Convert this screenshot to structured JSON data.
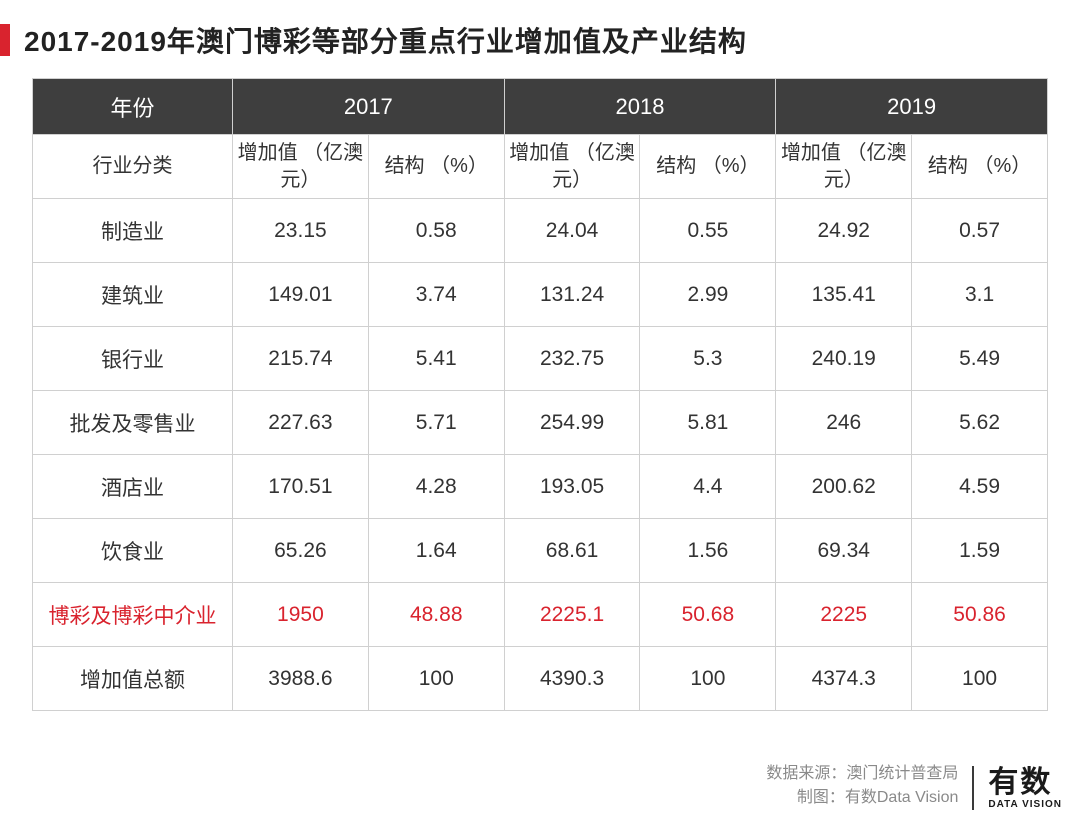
{
  "title": "2017-2019年澳门博彩等部分重点行业增加值及产业结构",
  "table": {
    "header_year_label": "年份",
    "years": [
      "2017",
      "2018",
      "2019"
    ],
    "sub_header_category_label": "行业分类",
    "sub_cols": [
      "增加值\n（亿澳元）",
      "结构\n（%）",
      "增加值\n（亿澳元）",
      "结构\n（%）",
      "增加值\n（亿澳元）",
      "结构\n（%）"
    ],
    "rows": [
      {
        "label": "制造业",
        "cells": [
          "23.15",
          "0.58",
          "24.04",
          "0.55",
          "24.92",
          "0.57"
        ],
        "highlight": false
      },
      {
        "label": "建筑业",
        "cells": [
          "149.01",
          "3.74",
          "131.24",
          "2.99",
          "135.41",
          "3.1"
        ],
        "highlight": false
      },
      {
        "label": "银行业",
        "cells": [
          "215.74",
          "5.41",
          "232.75",
          "5.3",
          "240.19",
          "5.49"
        ],
        "highlight": false
      },
      {
        "label": "批发及零售业",
        "cells": [
          "227.63",
          "5.71",
          "254.99",
          "5.81",
          "246",
          "5.62"
        ],
        "highlight": false
      },
      {
        "label": "酒店业",
        "cells": [
          "170.51",
          "4.28",
          "193.05",
          "4.4",
          "200.62",
          "4.59"
        ],
        "highlight": false
      },
      {
        "label": "饮食业",
        "cells": [
          "65.26",
          "1.64",
          "68.61",
          "1.56",
          "69.34",
          "1.59"
        ],
        "highlight": false
      },
      {
        "label": "博彩及博彩中介业",
        "cells": [
          "1950",
          "48.88",
          "2225.1",
          "50.68",
          "2225",
          "50.86"
        ],
        "highlight": true
      },
      {
        "label": "增加值总额",
        "cells": [
          "3988.6",
          "100",
          "4390.3",
          "100",
          "4374.3",
          "100"
        ],
        "highlight": false
      }
    ],
    "colors": {
      "header_bg": "#3e3e3e",
      "header_text": "#ffffff",
      "border": "#d0d0d0",
      "body_text": "#333333",
      "highlight_text": "#d9232e",
      "accent_bar": "#d9232e",
      "background": "#ffffff"
    }
  },
  "footer": {
    "source_label": "数据来源：澳门统计普查局",
    "chart_label": "制图：有数Data Vision",
    "logo_cn": "有数",
    "logo_en": "DATA VISION"
  }
}
